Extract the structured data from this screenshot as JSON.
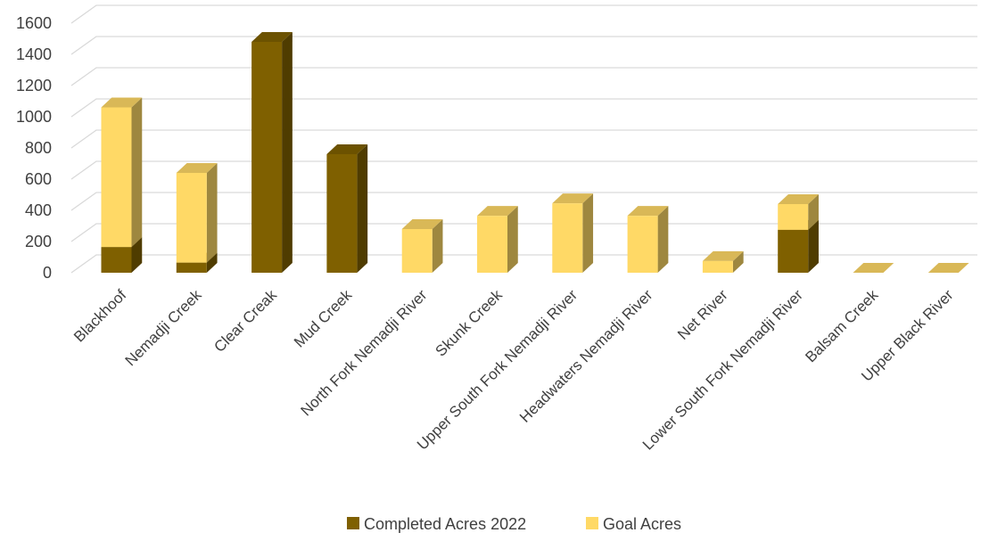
{
  "chart_data": {
    "type": "bar",
    "stacked": true,
    "three_d": true,
    "categories": [
      "Blackhoof",
      "Nemadji Creek",
      "Clear Creak",
      "Mud Creek",
      "North Fork Nemadji River",
      "Skunk Creek",
      "Upper South Fork Nemadji River",
      "Headwaters Nemadji River",
      "Net River",
      "Lower South Fork Nemadji River",
      "Balsam Creek",
      "Upper Black River"
    ],
    "series": [
      {
        "name": "Completed Acres 2022",
        "color": "#7f6000",
        "values": [
          165,
          65,
          1480,
          760,
          0,
          0,
          0,
          0,
          0,
          275,
          0,
          0
        ]
      },
      {
        "name": "Goal Acres",
        "color": "#ffd966",
        "values": [
          895,
          575,
          0,
          0,
          280,
          365,
          445,
          365,
          75,
          165,
          0,
          0
        ]
      }
    ],
    "y_ticks": [
      "0",
      "200",
      "400",
      "600",
      "800",
      "1000",
      "1200",
      "1400",
      "1600"
    ],
    "ylim": [
      0,
      1600
    ],
    "grid": true,
    "legend_position": "bottom"
  }
}
